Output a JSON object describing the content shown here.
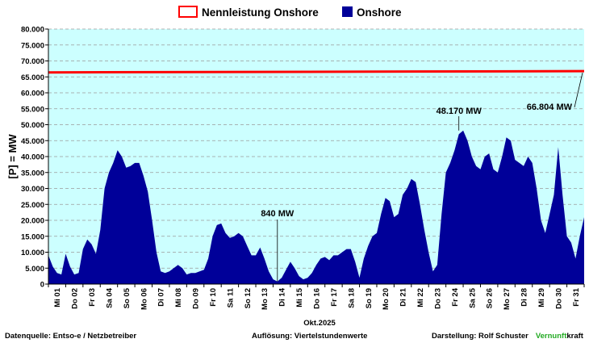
{
  "chart_data": {
    "type": "area",
    "title": "",
    "ylabel": "[P] = MW",
    "xlabel": "Okt.2025",
    "ylim": [
      0,
      80000
    ],
    "yticks": [
      "0",
      "5.000",
      "10.000",
      "15.000",
      "20.000",
      "25.000",
      "30.000",
      "35.000",
      "40.000",
      "45.000",
      "50.000",
      "55.000",
      "60.000",
      "65.000",
      "70.000",
      "75.000",
      "80.000"
    ],
    "x_tick_labels": [
      "Mi 01",
      "Do 02",
      "Fr 03",
      "Sa 04",
      "So 05",
      "Mo 06",
      "Di 07",
      "Mi 08",
      "Do 09",
      "Fr 10",
      "Sa 11",
      "So 12",
      "Mo 13",
      "Di 14",
      "Mi 15",
      "Do 16",
      "Fr 17",
      "Sa 18",
      "So 19",
      "Mo 20",
      "Di 21",
      "Mi 22",
      "Do 23",
      "Fr 24",
      "Sa 25",
      "So 26",
      "Mo 27",
      "Di 28",
      "Mi 29",
      "Do 30",
      "Fr 31"
    ],
    "grid": true,
    "legend_position": "top-center",
    "background_color": "#ccffff",
    "series": [
      {
        "name": "Nennleistung Onshore",
        "kind": "line",
        "color": "#ff0000",
        "x_day": [
          0,
          31
        ],
        "values": [
          66400,
          66804
        ]
      },
      {
        "name": "Onshore",
        "kind": "area",
        "color": "#000099",
        "x_day": [
          0,
          0.25,
          0.5,
          0.75,
          1,
          1.25,
          1.5,
          1.75,
          2,
          2.25,
          2.5,
          2.75,
          3,
          3.25,
          3.5,
          3.75,
          4,
          4.25,
          4.5,
          4.75,
          5,
          5.25,
          5.5,
          5.75,
          6,
          6.25,
          6.5,
          6.75,
          7,
          7.25,
          7.5,
          7.75,
          8,
          8.25,
          8.5,
          8.75,
          9,
          9.25,
          9.5,
          9.75,
          10,
          10.25,
          10.5,
          10.75,
          11,
          11.25,
          11.5,
          11.75,
          12,
          12.25,
          12.5,
          12.75,
          13,
          13.25,
          13.5,
          13.75,
          14,
          14.25,
          14.5,
          14.75,
          15,
          15.25,
          15.5,
          15.75,
          16,
          16.25,
          16.5,
          16.75,
          17,
          17.25,
          17.5,
          17.75,
          18,
          18.25,
          18.5,
          18.75,
          19,
          19.25,
          19.5,
          19.75,
          20,
          20.25,
          20.5,
          20.75,
          21,
          21.25,
          21.5,
          21.75,
          22,
          22.25,
          22.5,
          22.75,
          23,
          23.25,
          23.5,
          23.75,
          24,
          24.25,
          24.5,
          24.75,
          25,
          25.25,
          25.5,
          25.75,
          26,
          26.25,
          26.5,
          26.75,
          27,
          27.25,
          27.5,
          27.75,
          28,
          28.25,
          28.5,
          28.75,
          29,
          29.25,
          29.5,
          29.75,
          30,
          30.25,
          30.5,
          30.75,
          31
        ],
        "values": [
          9000,
          5500,
          3500,
          3000,
          9500,
          5500,
          3000,
          3500,
          11000,
          14000,
          12500,
          9500,
          17000,
          30000,
          35000,
          38000,
          42000,
          40000,
          36500,
          37000,
          38000,
          38000,
          34000,
          29000,
          20000,
          10000,
          4000,
          3500,
          4000,
          5000,
          6000,
          5000,
          3000,
          3500,
          3500,
          4000,
          4500,
          8000,
          15000,
          18500,
          19000,
          16000,
          14500,
          15000,
          16000,
          15000,
          12000,
          9000,
          9000,
          11500,
          8000,
          4000,
          1500,
          840,
          2000,
          4500,
          7000,
          5000,
          2500,
          1500,
          2000,
          3500,
          6000,
          8000,
          8500,
          7500,
          9000,
          9000,
          10000,
          11000,
          11000,
          7000,
          2000,
          8000,
          12000,
          15000,
          16000,
          22000,
          27000,
          26000,
          21000,
          22000,
          28000,
          30000,
          33000,
          32000,
          25000,
          17000,
          10000,
          4000,
          6000,
          22000,
          35000,
          38000,
          42000,
          47000,
          48170,
          45000,
          40000,
          37000,
          36000,
          40000,
          41000,
          36000,
          35000,
          40000,
          46000,
          45000,
          39000,
          38000,
          37000,
          40000,
          38000,
          30000,
          20000,
          16000,
          22000,
          28000,
          43000,
          28000,
          15000,
          13000,
          8000,
          15000,
          21000
        ]
      }
    ],
    "annotations": [
      {
        "label": "840 MW",
        "x_day": 13.25,
        "value": 840
      },
      {
        "label": "48.170 MW",
        "x_day": 23.75,
        "value": 48170
      },
      {
        "label": "66.804 MW",
        "x_day": 31,
        "value": 66804
      }
    ]
  },
  "footer": {
    "source": "Datenquelle:  Entso-e  / Netzbetreiber",
    "resolution": "Auflösung: Viertelstundenwerte",
    "author_prefix": "Darstellung:  Rolf Schuster",
    "brand_green": "Vernunft",
    "brand_black": "kraft"
  }
}
